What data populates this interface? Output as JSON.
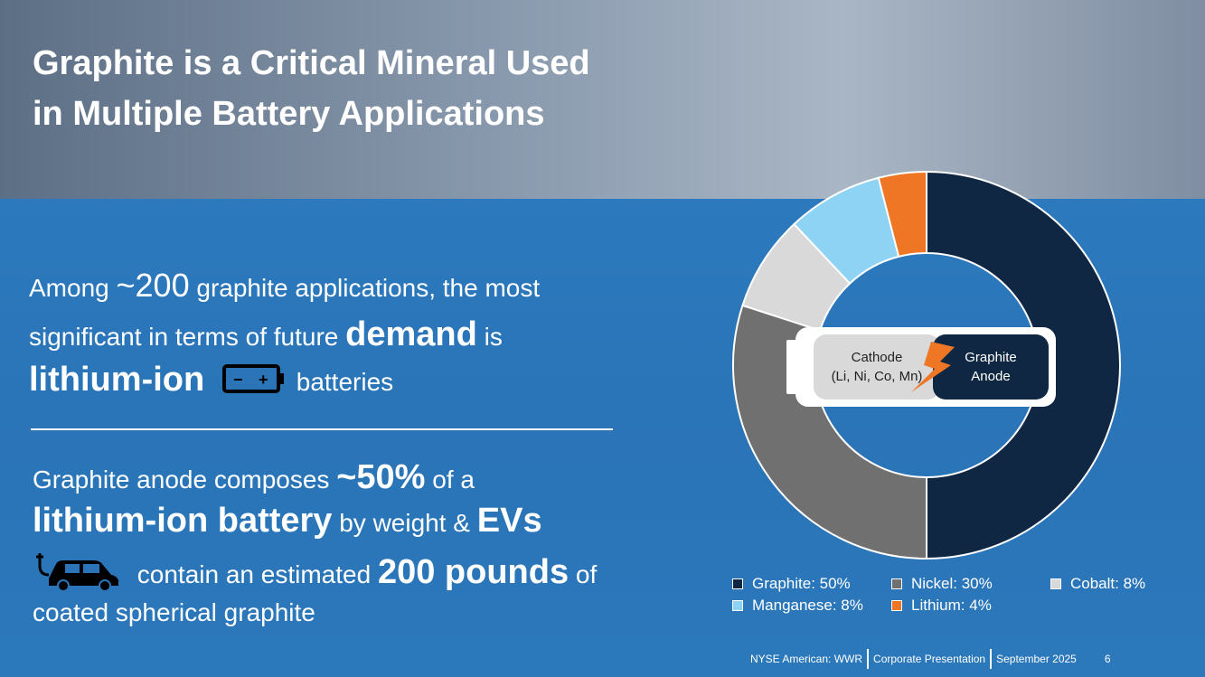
{
  "title": "Graphite is a Critical Mineral Used in Multiple Battery Applications",
  "para1": {
    "a": "Among ",
    "b": "~200",
    "c": " graphite applications, the most",
    "d": "significant in terms of future ",
    "e": "demand",
    "f": " is",
    "g": "lithium-ion",
    "h": " batteries"
  },
  "para2": {
    "a": "Graphite anode composes ",
    "b": "~50%",
    "c": " of a",
    "d": "lithium-ion battery",
    "e": " by weight & ",
    "f": "EVs",
    "g": " contain an estimated ",
    "h": "200 pounds",
    "i": " of",
    "j": "coated spherical graphite"
  },
  "battery_diagram": {
    "cathode": "Cathode",
    "cathode_sub": "(Li, Ni, Co, Mn)",
    "anode": "Graphite",
    "anode_sub": "Anode"
  },
  "chart_data": {
    "type": "pie",
    "donut": true,
    "categories": [
      "Graphite",
      "Nickel",
      "Cobalt",
      "Manganese",
      "Lithium"
    ],
    "values": [
      50,
      30,
      8,
      8,
      4
    ],
    "colors": [
      "#0f2742",
      "#707070",
      "#d9d9d9",
      "#8fd3f4",
      "#ee7624"
    ],
    "legend": [
      "Graphite: 50%",
      "Nickel: 30%",
      "Cobalt: 8%",
      "Manganese: 8%",
      "Lithium: 4%"
    ],
    "legend_placement": "bottom"
  },
  "footer": {
    "ticker": "NYSE American: WWR",
    "doc": "Corporate Presentation",
    "date": "September 2025",
    "page": "6"
  }
}
